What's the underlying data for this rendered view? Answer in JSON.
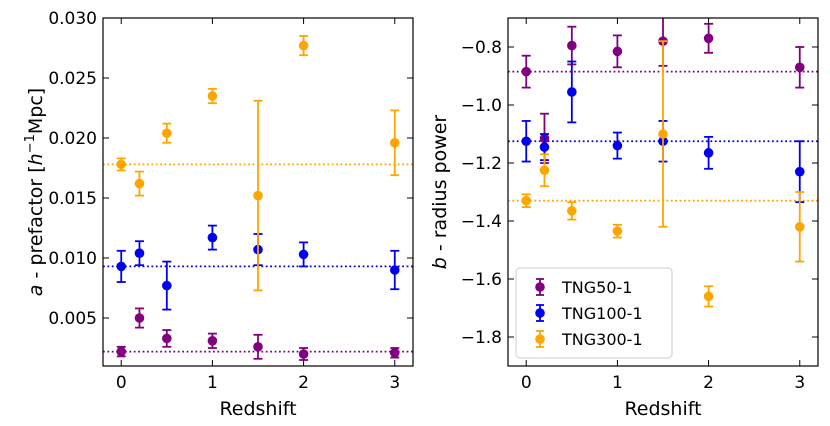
{
  "chart_data": [
    {
      "type": "scatter",
      "panel": "left",
      "xlabel": "Redshift",
      "ylabel_prefix": "a",
      "ylabel_text": " - prefactor [",
      "ylabel_unit_h": "h",
      "ylabel_unit_exp": "−1",
      "ylabel_unit_rest": "Mpc]",
      "xlim": [
        -0.2,
        3.2
      ],
      "ylim": [
        0.001,
        0.03
      ],
      "xticks": [
        0,
        1,
        2,
        3
      ],
      "xtick_labels": [
        "0",
        "1",
        "2",
        "3"
      ],
      "yticks": [
        0.005,
        0.01,
        0.015,
        0.02,
        0.025,
        0.03
      ],
      "ytick_labels": [
        "0.005",
        "0.010",
        "0.015",
        "0.020",
        "0.025",
        "0.030"
      ],
      "series": [
        {
          "name": "TNG50-1",
          "color": "#800080",
          "x": [
            0,
            0.2,
            0.5,
            1,
            1.5,
            2,
            3
          ],
          "y": [
            0.0022,
            0.005,
            0.0033,
            0.0031,
            0.0026,
            0.002,
            0.0021
          ],
          "err": [
            0.0004,
            0.0008,
            0.0007,
            0.0006,
            0.001,
            0.0005,
            0.0004
          ],
          "hline": 0.0022
        },
        {
          "name": "TNG100-1",
          "color": "#0000ee",
          "x": [
            0,
            0.2,
            0.5,
            1,
            1.5,
            2,
            3
          ],
          "y": [
            0.0093,
            0.0104,
            0.0077,
            0.0117,
            0.0107,
            0.0103,
            0.009
          ],
          "err": [
            0.0013,
            0.001,
            0.002,
            0.001,
            0.0013,
            0.001,
            0.0016
          ],
          "hline": 0.0093
        },
        {
          "name": "TNG300-1",
          "color": "#ffa500",
          "x": [
            0,
            0.2,
            0.5,
            1,
            1.5,
            2,
            3
          ],
          "y": [
            0.0178,
            0.0162,
            0.0204,
            0.0235,
            0.0152,
            0.0277,
            0.0196
          ],
          "err": [
            0.0005,
            0.001,
            0.0008,
            0.0006,
            0.0079,
            0.0008,
            0.0027
          ],
          "hline": 0.0178
        }
      ]
    },
    {
      "type": "scatter",
      "panel": "right",
      "xlabel": "Redshift",
      "ylabel_prefix": "b",
      "ylabel_text": " - radius power",
      "xlim": [
        -0.2,
        3.2
      ],
      "ylim": [
        -1.9,
        -0.7
      ],
      "xticks": [
        0,
        1,
        2,
        3
      ],
      "xtick_labels": [
        "0",
        "1",
        "2",
        "3"
      ],
      "yticks": [
        -1.8,
        -1.6,
        -1.4,
        -1.2,
        -1.0,
        -0.8
      ],
      "ytick_labels": [
        "−1.8",
        "−1.6",
        "−1.4",
        "−1.2",
        "−1.0",
        "−0.8"
      ],
      "legend_location": "lower-left",
      "series": [
        {
          "name": "TNG50-1",
          "color": "#800080",
          "x": [
            0,
            0.2,
            0.5,
            1,
            1.5,
            2,
            3
          ],
          "y": [
            -0.885,
            -1.115,
            -0.795,
            -0.815,
            -0.78,
            -0.77,
            -0.87
          ],
          "err": [
            0.055,
            0.085,
            0.065,
            0.055,
            0.085,
            0.05,
            0.07
          ],
          "hline": -0.885
        },
        {
          "name": "TNG100-1",
          "color": "#0000ee",
          "x": [
            0,
            0.2,
            0.5,
            1,
            1.5,
            2,
            3
          ],
          "y": [
            -1.125,
            -1.145,
            -0.955,
            -1.14,
            -1.125,
            -1.165,
            -1.23
          ],
          "err": [
            0.07,
            0.045,
            0.105,
            0.045,
            0.07,
            0.055,
            0.105
          ],
          "hline": -1.125
        },
        {
          "name": "TNG300-1",
          "color": "#ffa500",
          "x": [
            0,
            0.2,
            0.5,
            1,
            1.5,
            2,
            3
          ],
          "y": [
            -1.33,
            -1.225,
            -1.365,
            -1.435,
            -1.1,
            -1.66,
            -1.42
          ],
          "err": [
            0.022,
            0.055,
            0.03,
            0.022,
            0.32,
            0.035,
            0.12
          ],
          "hline": -1.33
        }
      ]
    }
  ]
}
